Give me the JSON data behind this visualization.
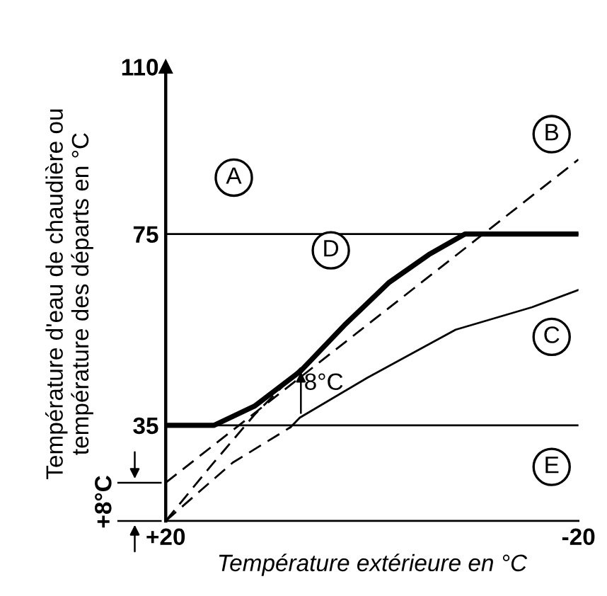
{
  "chart_data": {
    "type": "line",
    "xlabel": "Température extérieure en °C",
    "ylabel": "Température d'eau de chaudière ou\ntempérature des départs en °C",
    "xlim": [
      20,
      -20
    ],
    "ylim": [
      15,
      110
    ],
    "xticks": [
      {
        "value": 20,
        "label": "+20"
      },
      -20
    ],
    "yticks": [
      35,
      75,
      110
    ],
    "grid": false,
    "marker": "none",
    "series": [
      {
        "color": "#000000",
        "line_style": "solid",
        "x": [
          20,
          -20
        ],
        "values": [
          75,
          75
        ]
      },
      {
        "color": "#000000",
        "line_style": "solid",
        "x": [
          20,
          -20
        ],
        "values": [
          35,
          35
        ]
      },
      {
        "color": "#000000",
        "line_style": "dashed",
        "x": [
          20,
          -20
        ],
        "values": [
          23,
          90.6
        ]
      },
      {
        "color": "#000000",
        "line_style": "dashed",
        "x": [
          20,
          13.5,
          7.9
        ],
        "values": [
          15,
          27.2,
          34.6
        ]
      },
      {
        "color": "#000000",
        "line_style": "solid",
        "x": [
          7.9,
          7.0,
          0.5,
          -8.1,
          -15.5,
          -20
        ],
        "values": [
          34.6,
          36.6,
          44.9,
          55,
          59.7,
          63.3
        ]
      },
      {
        "color": "#000000",
        "line_style": "dashed",
        "x": [
          20,
          15.7,
          11.4,
          6.9
        ],
        "values": [
          15,
          26.3,
          37.2,
          47
        ]
      },
      {
        "color": "#000000",
        "line_style": "solid",
        "x": [
          20,
          15.3,
          11.4,
          6.9,
          2.7,
          -1.6,
          -5.5,
          -9.0,
          -20
        ],
        "values": [
          35,
          35,
          39,
          46.4,
          55.9,
          64.8,
          70.7,
          75,
          75
        ]
      }
    ],
    "annotations": [
      "+8°C",
      {
        "text": "A",
        "x": 13.4,
        "y": 86.8
      },
      {
        "text": "B",
        "x": -17.4,
        "y": 95.9
      },
      {
        "text": "C",
        "x": -17.4,
        "y": 53.5
      },
      {
        "text": "D",
        "x": 4.0,
        "y": 71.6
      },
      {
        "text": "E",
        "x": -17.4,
        "y": 26.3
      },
      {
        "text": "8°C",
        "x": 6.9,
        "y": 47
      }
    ]
  }
}
